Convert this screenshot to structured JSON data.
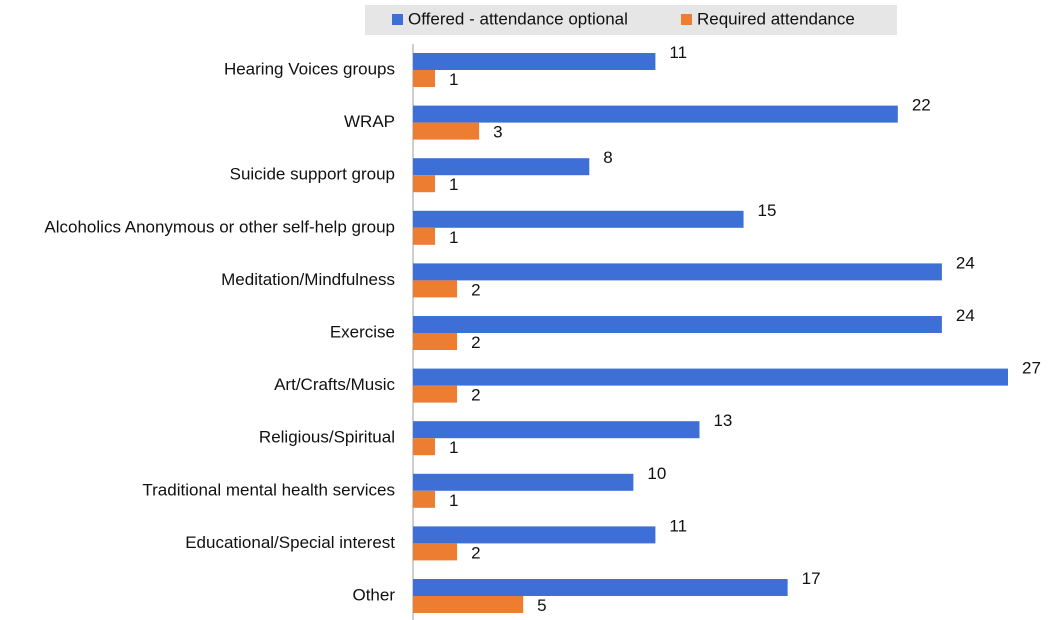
{
  "chart_data": {
    "type": "hbar",
    "categories": [
      "Hearing Voices groups",
      "WRAP",
      "Suicide support group",
      "Alcoholics Anonymous or other self-help group",
      "Meditation/Mindfulness",
      "Exercise",
      "Art/Crafts/Music",
      "Religious/Spiritual",
      "Traditional mental health services",
      "Educational/Special interest",
      "Other"
    ],
    "series": [
      {
        "name": "Offered - attendance optional",
        "color": "#3d6fd6",
        "values": [
          11,
          22,
          8,
          15,
          24,
          24,
          27,
          13,
          10,
          11,
          17
        ]
      },
      {
        "name": "Required attendance",
        "color": "#ed7d31",
        "values": [
          1,
          3,
          1,
          1,
          2,
          2,
          2,
          1,
          1,
          2,
          5
        ]
      }
    ],
    "legend": "top"
  }
}
